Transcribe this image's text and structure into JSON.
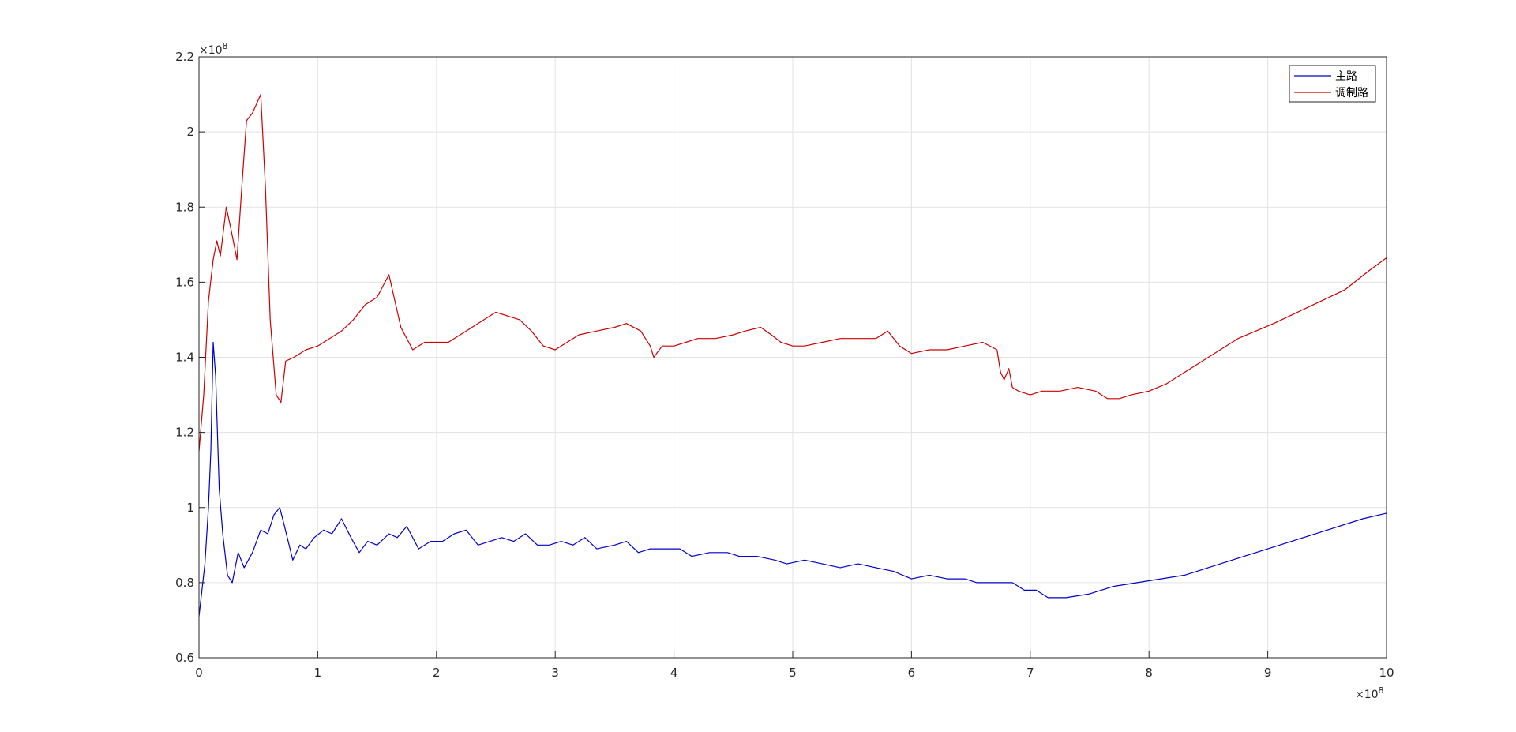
{
  "chart_data": {
    "type": "line",
    "title": "",
    "xlabel": "",
    "ylabel": "",
    "x_exponent_label": "×10^8",
    "y_exponent_label": "×10^8",
    "xlim": [
      0,
      10
    ],
    "ylim": [
      0.6,
      2.2
    ],
    "x_ticks": [
      0,
      1,
      2,
      3,
      4,
      5,
      6,
      7,
      8,
      9,
      10
    ],
    "y_ticks": [
      0.6,
      0.8,
      1,
      1.2,
      1.4,
      1.6,
      1.8,
      2,
      2.2
    ],
    "x_tick_labels": [
      "0",
      "1",
      "2",
      "3",
      "4",
      "5",
      "6",
      "7",
      "8",
      "9",
      "10"
    ],
    "y_tick_labels": [
      "0.6",
      "0.8",
      "1",
      "1.2",
      "1.4",
      "1.6",
      "1.8",
      "2",
      "2.2"
    ],
    "grid": true,
    "legend_position": "top-right",
    "series": [
      {
        "name": "主路",
        "color": "#0000cc",
        "points": [
          [
            0,
            0.71
          ],
          [
            0.05,
            0.85
          ],
          [
            0.08,
            1.0
          ],
          [
            0.1,
            1.15
          ],
          [
            0.12,
            1.44
          ],
          [
            0.14,
            1.35
          ],
          [
            0.17,
            1.05
          ],
          [
            0.2,
            0.93
          ],
          [
            0.24,
            0.82
          ],
          [
            0.28,
            0.8
          ],
          [
            0.33,
            0.88
          ],
          [
            0.38,
            0.84
          ],
          [
            0.45,
            0.88
          ],
          [
            0.52,
            0.94
          ],
          [
            0.58,
            0.93
          ],
          [
            0.63,
            0.98
          ],
          [
            0.68,
            1.0
          ],
          [
            0.72,
            0.95
          ],
          [
            0.79,
            0.86
          ],
          [
            0.85,
            0.9
          ],
          [
            0.9,
            0.89
          ],
          [
            0.97,
            0.92
          ],
          [
            1.05,
            0.94
          ],
          [
            1.12,
            0.93
          ],
          [
            1.2,
            0.97
          ],
          [
            1.28,
            0.92
          ],
          [
            1.35,
            0.88
          ],
          [
            1.42,
            0.91
          ],
          [
            1.5,
            0.9
          ],
          [
            1.6,
            0.93
          ],
          [
            1.67,
            0.92
          ],
          [
            1.75,
            0.95
          ],
          [
            1.85,
            0.89
          ],
          [
            1.95,
            0.91
          ],
          [
            2.05,
            0.91
          ],
          [
            2.15,
            0.93
          ],
          [
            2.25,
            0.94
          ],
          [
            2.35,
            0.9
          ],
          [
            2.45,
            0.91
          ],
          [
            2.55,
            0.92
          ],
          [
            2.65,
            0.91
          ],
          [
            2.75,
            0.93
          ],
          [
            2.85,
            0.9
          ],
          [
            2.95,
            0.9
          ],
          [
            3.05,
            0.91
          ],
          [
            3.15,
            0.9
          ],
          [
            3.25,
            0.92
          ],
          [
            3.35,
            0.89
          ],
          [
            3.5,
            0.9
          ],
          [
            3.6,
            0.91
          ],
          [
            3.7,
            0.88
          ],
          [
            3.8,
            0.89
          ],
          [
            3.95,
            0.89
          ],
          [
            4.05,
            0.89
          ],
          [
            4.15,
            0.87
          ],
          [
            4.3,
            0.88
          ],
          [
            4.45,
            0.88
          ],
          [
            4.55,
            0.87
          ],
          [
            4.7,
            0.87
          ],
          [
            4.85,
            0.86
          ],
          [
            4.95,
            0.85
          ],
          [
            5.1,
            0.86
          ],
          [
            5.25,
            0.85
          ],
          [
            5.4,
            0.84
          ],
          [
            5.55,
            0.85
          ],
          [
            5.7,
            0.84
          ],
          [
            5.85,
            0.83
          ],
          [
            6.0,
            0.81
          ],
          [
            6.15,
            0.82
          ],
          [
            6.3,
            0.81
          ],
          [
            6.45,
            0.81
          ],
          [
            6.55,
            0.8
          ],
          [
            6.7,
            0.8
          ],
          [
            6.85,
            0.8
          ],
          [
            6.95,
            0.78
          ],
          [
            7.05,
            0.78
          ],
          [
            7.15,
            0.76
          ],
          [
            7.3,
            0.76
          ],
          [
            7.5,
            0.77
          ],
          [
            7.7,
            0.79
          ],
          [
            7.9,
            0.8
          ],
          [
            8.1,
            0.81
          ],
          [
            8.3,
            0.82
          ],
          [
            8.6,
            0.85
          ],
          [
            8.9,
            0.88
          ],
          [
            9.2,
            0.91
          ],
          [
            9.5,
            0.94
          ],
          [
            9.8,
            0.97
          ],
          [
            10.0,
            0.985
          ]
        ]
      },
      {
        "name": "调制路",
        "color": "#cc0000",
        "points": [
          [
            0,
            1.15
          ],
          [
            0.04,
            1.3
          ],
          [
            0.08,
            1.55
          ],
          [
            0.12,
            1.66
          ],
          [
            0.15,
            1.71
          ],
          [
            0.18,
            1.67
          ],
          [
            0.23,
            1.8
          ],
          [
            0.27,
            1.74
          ],
          [
            0.32,
            1.66
          ],
          [
            0.36,
            1.85
          ],
          [
            0.4,
            2.03
          ],
          [
            0.45,
            2.05
          ],
          [
            0.52,
            2.1
          ],
          [
            0.56,
            1.85
          ],
          [
            0.6,
            1.5
          ],
          [
            0.65,
            1.3
          ],
          [
            0.69,
            1.28
          ],
          [
            0.73,
            1.39
          ],
          [
            0.8,
            1.4
          ],
          [
            0.9,
            1.42
          ],
          [
            1.0,
            1.43
          ],
          [
            1.1,
            1.45
          ],
          [
            1.2,
            1.47
          ],
          [
            1.3,
            1.5
          ],
          [
            1.4,
            1.54
          ],
          [
            1.5,
            1.56
          ],
          [
            1.6,
            1.62
          ],
          [
            1.7,
            1.48
          ],
          [
            1.8,
            1.42
          ],
          [
            1.9,
            1.44
          ],
          [
            2.0,
            1.44
          ],
          [
            2.1,
            1.44
          ],
          [
            2.25,
            1.47
          ],
          [
            2.4,
            1.5
          ],
          [
            2.5,
            1.52
          ],
          [
            2.6,
            1.51
          ],
          [
            2.7,
            1.5
          ],
          [
            2.8,
            1.47
          ],
          [
            2.9,
            1.43
          ],
          [
            3.0,
            1.42
          ],
          [
            3.1,
            1.44
          ],
          [
            3.2,
            1.46
          ],
          [
            3.35,
            1.47
          ],
          [
            3.5,
            1.48
          ],
          [
            3.6,
            1.49
          ],
          [
            3.72,
            1.47
          ],
          [
            3.8,
            1.43
          ],
          [
            3.83,
            1.4
          ],
          [
            3.9,
            1.43
          ],
          [
            4.0,
            1.43
          ],
          [
            4.1,
            1.44
          ],
          [
            4.2,
            1.45
          ],
          [
            4.35,
            1.45
          ],
          [
            4.5,
            1.46
          ],
          [
            4.6,
            1.47
          ],
          [
            4.73,
            1.48
          ],
          [
            4.82,
            1.46
          ],
          [
            4.9,
            1.44
          ],
          [
            5.0,
            1.43
          ],
          [
            5.1,
            1.43
          ],
          [
            5.25,
            1.44
          ],
          [
            5.4,
            1.45
          ],
          [
            5.55,
            1.45
          ],
          [
            5.7,
            1.45
          ],
          [
            5.8,
            1.47
          ],
          [
            5.9,
            1.43
          ],
          [
            6.0,
            1.41
          ],
          [
            6.15,
            1.42
          ],
          [
            6.3,
            1.42
          ],
          [
            6.45,
            1.43
          ],
          [
            6.6,
            1.44
          ],
          [
            6.72,
            1.42
          ],
          [
            6.75,
            1.36
          ],
          [
            6.78,
            1.34
          ],
          [
            6.82,
            1.37
          ],
          [
            6.85,
            1.32
          ],
          [
            6.9,
            1.31
          ],
          [
            7.0,
            1.3
          ],
          [
            7.1,
            1.31
          ],
          [
            7.25,
            1.31
          ],
          [
            7.4,
            1.32
          ],
          [
            7.55,
            1.31
          ],
          [
            7.65,
            1.29
          ],
          [
            7.75,
            1.29
          ],
          [
            7.85,
            1.3
          ],
          [
            8.0,
            1.31
          ],
          [
            8.15,
            1.33
          ],
          [
            8.3,
            1.36
          ],
          [
            8.45,
            1.39
          ],
          [
            8.6,
            1.42
          ],
          [
            8.75,
            1.45
          ],
          [
            8.9,
            1.47
          ],
          [
            9.05,
            1.49
          ],
          [
            9.25,
            1.52
          ],
          [
            9.45,
            1.55
          ],
          [
            9.65,
            1.58
          ],
          [
            9.85,
            1.63
          ],
          [
            10.0,
            1.665
          ]
        ]
      }
    ]
  }
}
